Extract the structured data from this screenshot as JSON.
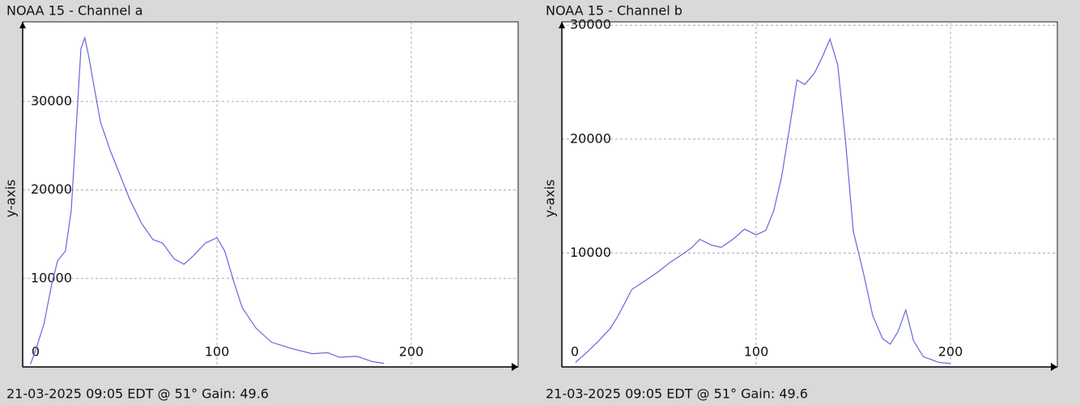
{
  "chart_data": [
    {
      "type": "line",
      "title": "NOAA 15 - Channel a",
      "y_label": "y-axis",
      "annotation": "21-03-2025 09:05 EDT @ 51° Gain: 49.6",
      "x": [
        4,
        7,
        11,
        15,
        18,
        22,
        25,
        28,
        30,
        32,
        34,
        37,
        40,
        45,
        49,
        55,
        61,
        67,
        72,
        78,
        83,
        88,
        94,
        100,
        104,
        109,
        113,
        120,
        128,
        138,
        149,
        157,
        163,
        172,
        180,
        186
      ],
      "values": [
        300,
        2100,
        4900,
        9400,
        12000,
        13100,
        17700,
        28700,
        36000,
        37200,
        35100,
        31400,
        27700,
        24500,
        22300,
        19000,
        16300,
        14400,
        14000,
        12200,
        11600,
        12600,
        14000,
        14600,
        13100,
        9400,
        6700,
        4400,
        2800,
        2100,
        1500,
        1600,
        1100,
        1200,
        600,
        400
      ],
      "color": "#6666dd",
      "xlim": [
        0,
        255
      ],
      "ylim": [
        0,
        39000
      ],
      "xticks": [
        0,
        100,
        200
      ],
      "yticks": [
        10000,
        20000,
        30000
      ],
      "grid": true
    },
    {
      "type": "line",
      "title": "NOAA 15 - Channel b",
      "y_label": "y-axis",
      "annotation": "21-03-2025 09:05 EDT @ 51° Gain: 49.6",
      "x": [
        7,
        13,
        19,
        25,
        29,
        36,
        44,
        50,
        55,
        63,
        67,
        71,
        77,
        82,
        88,
        94,
        100,
        105,
        109,
        113,
        117,
        121,
        125,
        130,
        134,
        138,
        142,
        146,
        150,
        155,
        160,
        165,
        169,
        173,
        177,
        181,
        186,
        194,
        200
      ],
      "values": [
        400,
        1300,
        2300,
        3400,
        4500,
        6800,
        7700,
        8400,
        9100,
        10000,
        10500,
        11200,
        10700,
        10500,
        11200,
        12100,
        11600,
        12000,
        13700,
        16600,
        20800,
        25200,
        24800,
        25800,
        27200,
        28800,
        26500,
        19800,
        11900,
        8400,
        4500,
        2500,
        2000,
        3100,
        5000,
        2300,
        900,
        400,
        300
      ],
      "color": "#6666dd",
      "xlim": [
        0,
        255
      ],
      "ylim": [
        0,
        30300
      ],
      "xticks": [
        0,
        100,
        200
      ],
      "yticks": [
        10000,
        20000,
        30000
      ],
      "grid": true
    }
  ]
}
